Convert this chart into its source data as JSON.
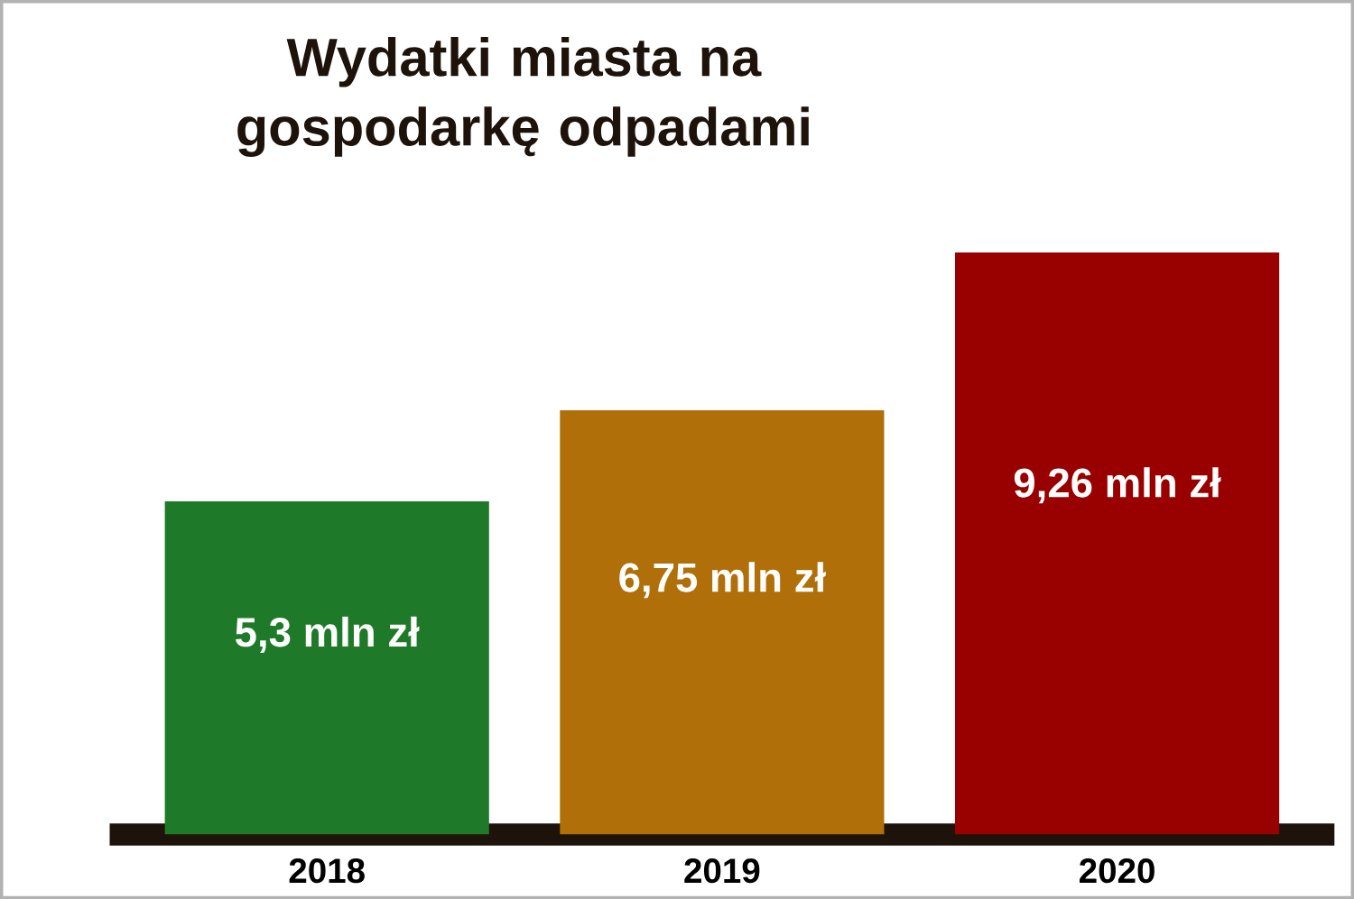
{
  "chart_data": {
    "type": "bar",
    "title": "Wydatki miasta na gospodarkę odpadami",
    "categories": [
      "2018",
      "2019",
      "2020"
    ],
    "values": [
      5.3,
      6.75,
      9.26
    ],
    "value_labels": [
      "5,3 mln zł",
      "6,75 mln zł",
      "9,26 mln zł"
    ],
    "colors": [
      "#1e7a28",
      "#b06f08",
      "#990000"
    ]
  }
}
